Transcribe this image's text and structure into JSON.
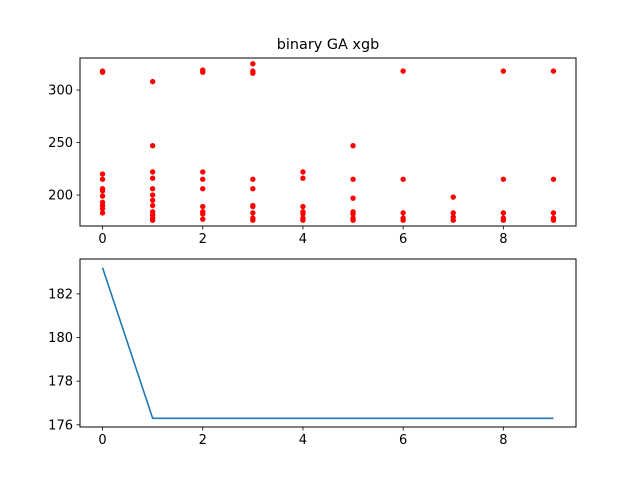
{
  "chart_data": [
    {
      "type": "scatter",
      "title": "binary GA xgb",
      "xlabel": "",
      "ylabel": "",
      "xlim": [
        -0.45,
        9.45
      ],
      "ylim": [
        170.5,
        330.5
      ],
      "xticks": [
        0,
        2,
        4,
        6,
        8
      ],
      "yticks": [
        200,
        250,
        300
      ],
      "grid": false,
      "marker_color": "#ff0000",
      "points": [
        [
          0,
          317
        ],
        [
          0,
          318
        ],
        [
          0,
          220
        ],
        [
          0,
          215
        ],
        [
          0,
          206
        ],
        [
          0,
          204
        ],
        [
          0,
          199
        ],
        [
          0,
          193
        ],
        [
          0,
          190
        ],
        [
          0,
          187
        ],
        [
          0,
          183
        ],
        [
          1,
          308
        ],
        [
          1,
          247
        ],
        [
          1,
          222
        ],
        [
          1,
          216
        ],
        [
          1,
          206
        ],
        [
          1,
          200
        ],
        [
          1,
          195
        ],
        [
          1,
          190
        ],
        [
          1,
          184
        ],
        [
          1,
          181
        ],
        [
          1,
          178
        ],
        [
          1,
          176
        ],
        [
          2,
          319
        ],
        [
          2,
          317
        ],
        [
          2,
          222
        ],
        [
          2,
          215
        ],
        [
          2,
          206
        ],
        [
          2,
          189
        ],
        [
          2,
          184
        ],
        [
          2,
          182
        ],
        [
          2,
          177
        ],
        [
          3,
          325
        ],
        [
          3,
          318
        ],
        [
          3,
          316
        ],
        [
          3,
          215
        ],
        [
          3,
          206
        ],
        [
          3,
          190
        ],
        [
          3,
          189
        ],
        [
          3,
          183
        ],
        [
          3,
          178
        ],
        [
          3,
          176
        ],
        [
          4,
          222
        ],
        [
          4,
          216
        ],
        [
          4,
          189
        ],
        [
          4,
          184
        ],
        [
          4,
          182
        ],
        [
          4,
          178
        ],
        [
          4,
          176
        ],
        [
          5,
          247
        ],
        [
          5,
          215
        ],
        [
          5,
          197
        ],
        [
          5,
          184
        ],
        [
          5,
          182
        ],
        [
          5,
          178
        ],
        [
          5,
          176
        ],
        [
          6,
          318
        ],
        [
          6,
          215
        ],
        [
          6,
          183
        ],
        [
          6,
          178
        ],
        [
          6,
          176
        ],
        [
          7,
          198
        ],
        [
          7,
          183
        ],
        [
          7,
          179
        ],
        [
          7,
          176
        ],
        [
          8,
          318
        ],
        [
          8,
          215
        ],
        [
          8,
          183
        ],
        [
          8,
          178
        ],
        [
          8,
          176
        ],
        [
          9,
          318
        ],
        [
          9,
          215
        ],
        [
          9,
          183
        ],
        [
          9,
          178
        ],
        [
          9,
          176
        ]
      ]
    },
    {
      "type": "line",
      "title": "",
      "xlabel": "",
      "ylabel": "",
      "xlim": [
        -0.45,
        9.45
      ],
      "ylim": [
        175.9,
        183.6
      ],
      "xticks": [
        0,
        2,
        4,
        6,
        8
      ],
      "yticks": [
        176,
        178,
        180,
        182
      ],
      "grid": false,
      "line_color": "#1f77b4",
      "x": [
        0,
        1,
        2,
        3,
        4,
        5,
        6,
        7,
        8,
        9
      ],
      "y": [
        183.2,
        176.3,
        176.3,
        176.3,
        176.3,
        176.3,
        176.3,
        176.3,
        176.3,
        176.3
      ]
    }
  ]
}
